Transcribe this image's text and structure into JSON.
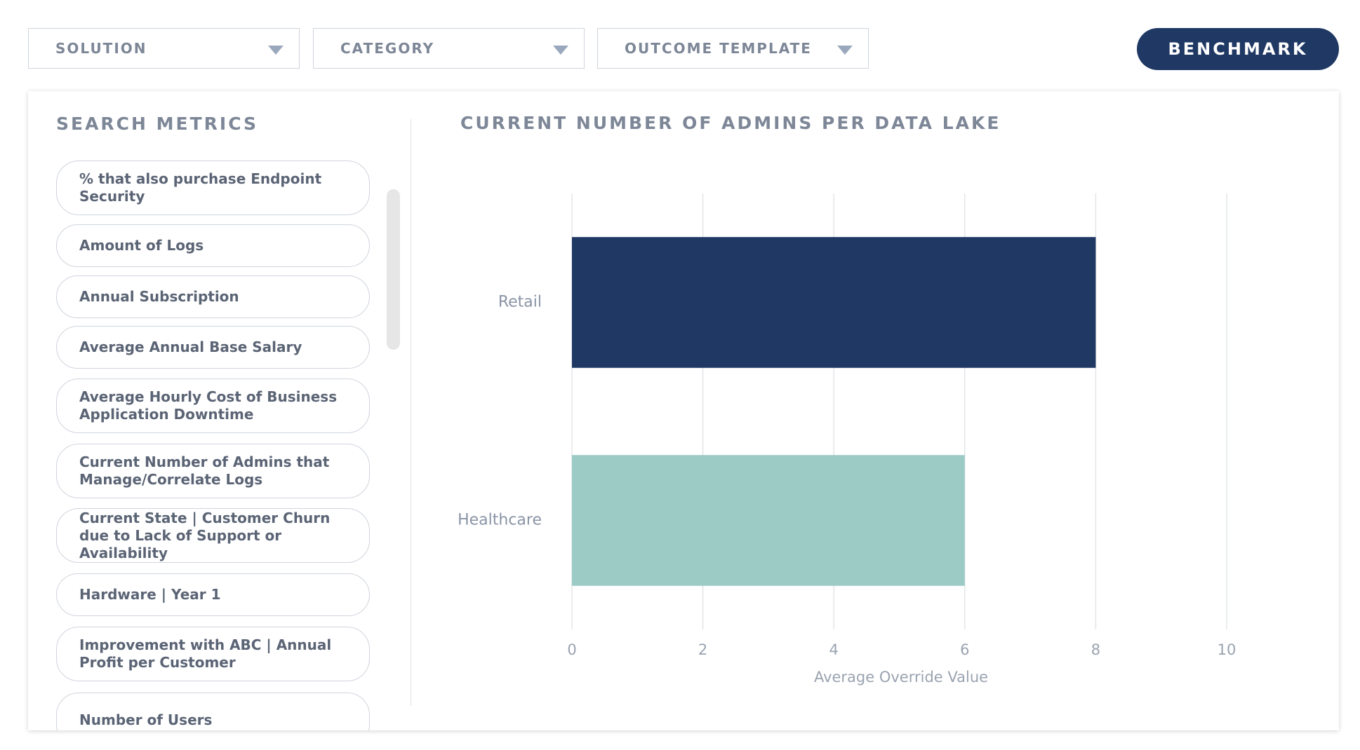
{
  "filters": [
    "SOLUTION",
    "CATEGORY",
    "OUTCOME TEMPLATE"
  ],
  "button": "BENCHMARK",
  "search_title": "SEARCH METRICS",
  "metrics": [
    "% that also purchase Endpoint Security",
    "Amount of Logs",
    "Annual Subscription",
    "Average Annual Base Salary",
    "Average Hourly Cost of Business Application Downtime",
    "Current Number of Admins that Manage/Correlate Logs",
    "Current State | Customer Churn due to Lack of Support or Availability",
    "Hardware | Year 1",
    "Improvement with ABC | Annual Profit per Customer",
    "Number of Users"
  ],
  "chart_data": {
    "type": "bar",
    "orientation": "horizontal",
    "title": "CURRENT NUMBER OF ADMINS PER DATA LAKE",
    "categories": [
      "Retail",
      "Healthcare"
    ],
    "values": [
      8,
      6
    ],
    "colors": [
      "#1f3864",
      "#9ccbc6"
    ],
    "x_label": "Average Override Value",
    "xlim": [
      0,
      10
    ],
    "xticks": [
      0,
      2,
      4,
      6,
      8,
      10
    ],
    "grid": true
  }
}
